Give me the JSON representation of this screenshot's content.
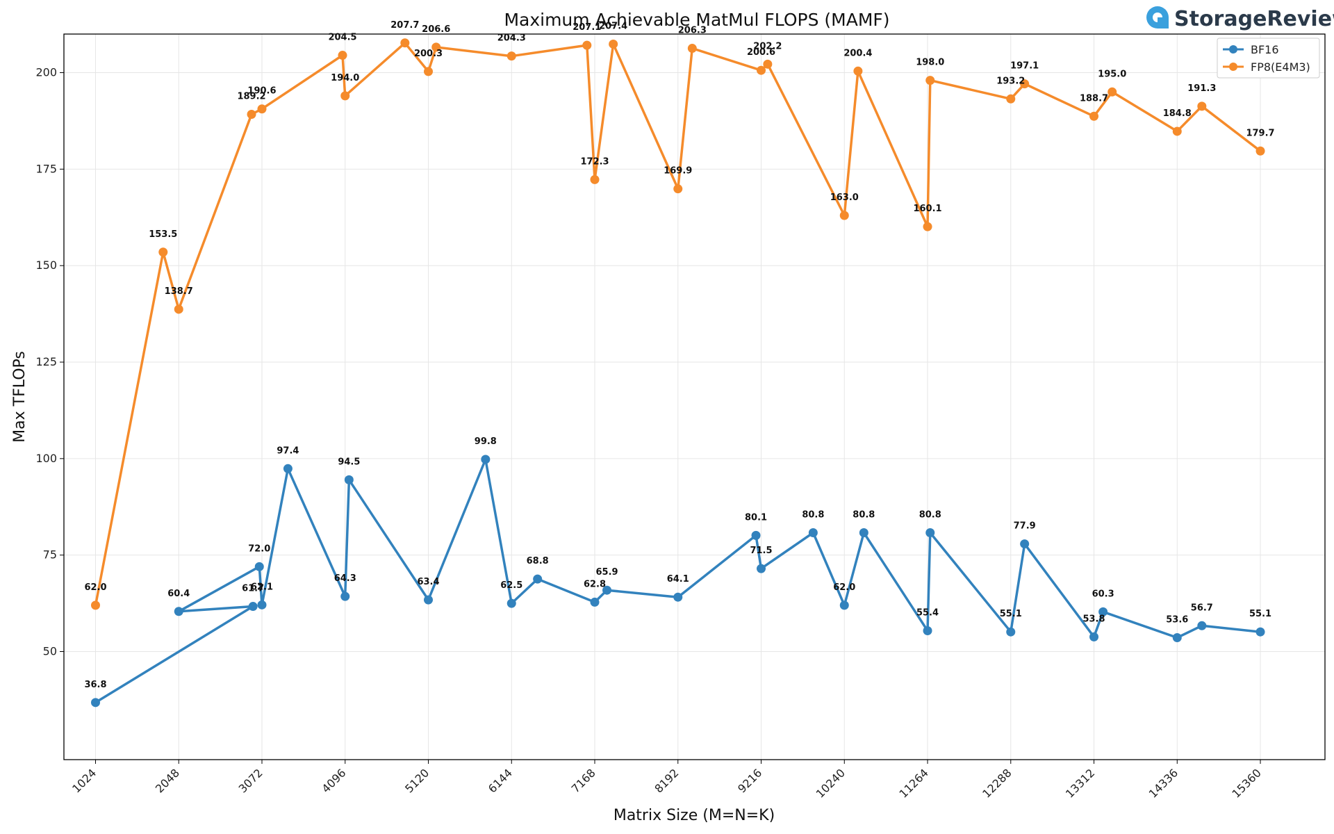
{
  "brand": {
    "name": "StorageReview",
    "icon": "storagereview-logo-icon",
    "color": "#3aa0dd"
  },
  "chart_data": {
    "type": "line",
    "title": "Maximum Achievable MatMul FLOPS (MAMF)",
    "xlabel": "Matrix Size (M=N=K)",
    "ylabel": "Max TFLOPs",
    "xlim": [
      635,
      16155
    ],
    "ylim": [
      22,
      210
    ],
    "xticks": [
      1024,
      2048,
      3072,
      4096,
      5120,
      6144,
      7168,
      8192,
      9216,
      10240,
      11264,
      12288,
      13312,
      14336,
      15360
    ],
    "yticks": [
      50,
      75,
      100,
      125,
      150,
      175,
      200
    ],
    "grid": true,
    "legend_position": "top-right",
    "series": [
      {
        "name": "BF16",
        "color": "#3282bd",
        "points": [
          {
            "x": 1024,
            "y": 36.8
          },
          {
            "x": 2962,
            "y": 61.7
          },
          {
            "x": 2048,
            "y": 60.4
          },
          {
            "x": 3040,
            "y": 72.0
          },
          {
            "x": 3072,
            "y": 62.1
          },
          {
            "x": 3392,
            "y": 97.4
          },
          {
            "x": 4096,
            "y": 64.3
          },
          {
            "x": 4144,
            "y": 94.5
          },
          {
            "x": 5120,
            "y": 63.4
          },
          {
            "x": 5824,
            "y": 99.8
          },
          {
            "x": 6144,
            "y": 62.5
          },
          {
            "x": 6464,
            "y": 68.8
          },
          {
            "x": 7168,
            "y": 62.8
          },
          {
            "x": 7318,
            "y": 65.9
          },
          {
            "x": 8192,
            "y": 64.1
          },
          {
            "x": 9152,
            "y": 80.1
          },
          {
            "x": 9216,
            "y": 71.5
          },
          {
            "x": 9856,
            "y": 80.8
          },
          {
            "x": 10240,
            "y": 62.0
          },
          {
            "x": 10480,
            "y": 80.8
          },
          {
            "x": 11264,
            "y": 55.4
          },
          {
            "x": 11296,
            "y": 80.8
          },
          {
            "x": 12288,
            "y": 55.1
          },
          {
            "x": 12458,
            "y": 77.9
          },
          {
            "x": 13312,
            "y": 53.8
          },
          {
            "x": 13424,
            "y": 60.3
          },
          {
            "x": 14336,
            "y": 53.6
          },
          {
            "x": 14640,
            "y": 56.7
          },
          {
            "x": 15360,
            "y": 55.1
          }
        ]
      },
      {
        "name": "FP8(E4M3)",
        "color": "#f58b2b",
        "points": [
          {
            "x": 1024,
            "y": 62.0
          },
          {
            "x": 1856,
            "y": 153.5
          },
          {
            "x": 2048,
            "y": 138.7
          },
          {
            "x": 2944,
            "y": 189.2
          },
          {
            "x": 3072,
            "y": 190.6
          },
          {
            "x": 4064,
            "y": 204.5
          },
          {
            "x": 4096,
            "y": 194.0
          },
          {
            "x": 4832,
            "y": 207.7
          },
          {
            "x": 5120,
            "y": 200.3
          },
          {
            "x": 5216,
            "y": 206.6
          },
          {
            "x": 6144,
            "y": 204.3
          },
          {
            "x": 7072,
            "y": 207.1
          },
          {
            "x": 7168,
            "y": 172.3
          },
          {
            "x": 7396,
            "y": 207.4
          },
          {
            "x": 8192,
            "y": 169.9
          },
          {
            "x": 8368,
            "y": 206.3
          },
          {
            "x": 9216,
            "y": 200.6
          },
          {
            "x": 9296,
            "y": 202.2
          },
          {
            "x": 10240,
            "y": 163.0
          },
          {
            "x": 10408,
            "y": 200.4
          },
          {
            "x": 11264,
            "y": 160.1
          },
          {
            "x": 11296,
            "y": 198.0
          },
          {
            "x": 12288,
            "y": 193.2
          },
          {
            "x": 12458,
            "y": 197.1
          },
          {
            "x": 13312,
            "y": 188.7
          },
          {
            "x": 13536,
            "y": 195.0
          },
          {
            "x": 14336,
            "y": 184.8
          },
          {
            "x": 14640,
            "y": 191.3
          },
          {
            "x": 15360,
            "y": 179.7
          }
        ]
      }
    ]
  }
}
